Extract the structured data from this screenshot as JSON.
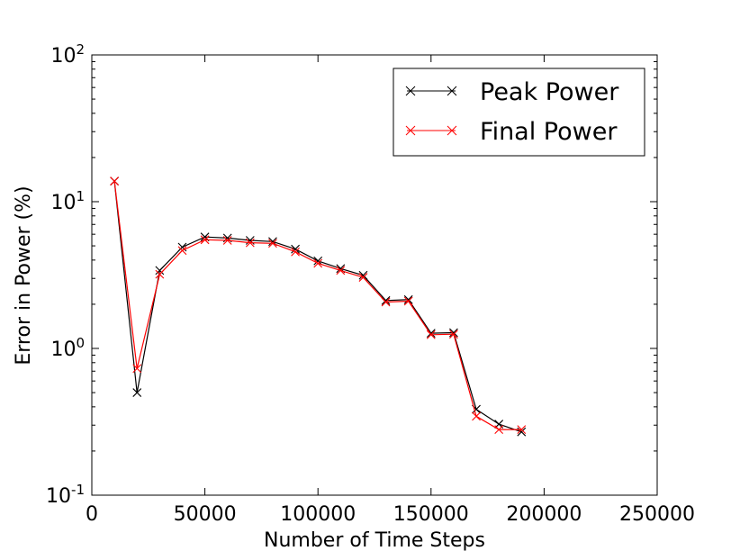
{
  "chart_data": {
    "type": "line",
    "xlabel": "Number of Time Steps",
    "ylabel": "Error in Power (%)",
    "xscale": "linear",
    "yscale": "log",
    "xlim": [
      0,
      250000
    ],
    "ylim": [
      0.1,
      100
    ],
    "xticks": [
      0,
      50000,
      100000,
      150000,
      200000,
      250000
    ],
    "xtick_labels": [
      "0",
      "50000",
      "100000",
      "150000",
      "200000",
      "250000"
    ],
    "yticks": [
      {
        "value": 0.1,
        "base": "10",
        "exp": "-1"
      },
      {
        "value": 1,
        "base": "10",
        "exp": "0"
      },
      {
        "value": 10,
        "base": "10",
        "exp": "1"
      },
      {
        "value": 100,
        "base": "10",
        "exp": "2"
      }
    ],
    "grid": false,
    "legend_position": "top-right",
    "x": [
      10000,
      20000,
      30000,
      40000,
      50000,
      60000,
      70000,
      80000,
      90000,
      100000,
      110000,
      120000,
      130000,
      140000,
      150000,
      160000,
      170000,
      180000,
      190000
    ],
    "series": [
      {
        "name": "Peak Power",
        "color": "#000000",
        "marker": "x",
        "values": [
          13.8,
          0.5,
          3.4,
          4.9,
          5.75,
          5.65,
          5.45,
          5.35,
          4.75,
          3.95,
          3.5,
          3.15,
          2.12,
          2.15,
          1.27,
          1.28,
          0.385,
          0.305,
          0.27
        ]
      },
      {
        "name": "Final Power",
        "color": "#ff0000",
        "marker": "x",
        "values": [
          13.8,
          0.73,
          3.2,
          4.65,
          5.5,
          5.45,
          5.25,
          5.2,
          4.55,
          3.8,
          3.4,
          3.05,
          2.07,
          2.1,
          1.24,
          1.25,
          0.345,
          0.28,
          0.28
        ]
      }
    ]
  }
}
